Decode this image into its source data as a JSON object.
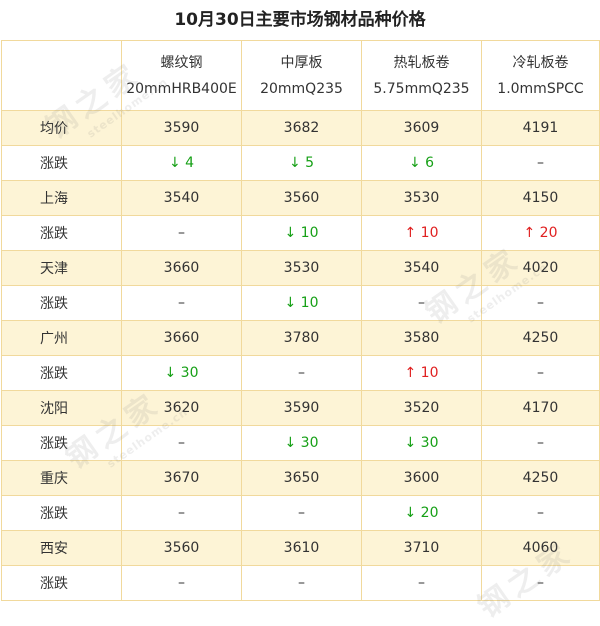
{
  "title": "10月30日主要市场钢材品种价格",
  "headers": [
    {
      "name": "螺纹钢",
      "spec": "20mmHRB400E"
    },
    {
      "name": "中厚板",
      "spec": "20mmQ235"
    },
    {
      "name": "热轧板卷",
      "spec": "5.75mmQ235"
    },
    {
      "name": "冷轧板卷",
      "spec": "1.0mmSPCC"
    }
  ],
  "rows": [
    {
      "label": "均价",
      "cells": [
        "3590",
        "3682",
        "3609",
        "4191"
      ]
    },
    {
      "label": "涨跌",
      "cells": [
        "↓ 4",
        "↓ 5",
        "↓ 6",
        "–"
      ],
      "dirs": [
        "down",
        "down",
        "down",
        "flat"
      ]
    },
    {
      "label": "上海",
      "cells": [
        "3540",
        "3560",
        "3530",
        "4150"
      ]
    },
    {
      "label": "涨跌",
      "cells": [
        "–",
        "↓ 10",
        "↑ 10",
        "↑ 20"
      ],
      "dirs": [
        "flat",
        "down",
        "up",
        "up"
      ]
    },
    {
      "label": "天津",
      "cells": [
        "3660",
        "3530",
        "3540",
        "4020"
      ]
    },
    {
      "label": "涨跌",
      "cells": [
        "–",
        "↓ 10",
        "–",
        "–"
      ],
      "dirs": [
        "flat",
        "down",
        "flat",
        "flat"
      ]
    },
    {
      "label": "广州",
      "cells": [
        "3660",
        "3780",
        "3580",
        "4250"
      ]
    },
    {
      "label": "涨跌",
      "cells": [
        "↓ 30",
        "–",
        "↑ 10",
        "–"
      ],
      "dirs": [
        "down",
        "flat",
        "up",
        "flat"
      ]
    },
    {
      "label": "沈阳",
      "cells": [
        "3620",
        "3590",
        "3520",
        "4170"
      ]
    },
    {
      "label": "涨跌",
      "cells": [
        "–",
        "↓ 30",
        "↓ 30",
        "–"
      ],
      "dirs": [
        "flat",
        "down",
        "down",
        "flat"
      ]
    },
    {
      "label": "重庆",
      "cells": [
        "3670",
        "3650",
        "3600",
        "4250"
      ]
    },
    {
      "label": "涨跌",
      "cells": [
        "–",
        "–",
        "↓ 20",
        "–"
      ],
      "dirs": [
        "flat",
        "flat",
        "down",
        "flat"
      ]
    },
    {
      "label": "西安",
      "cells": [
        "3560",
        "3610",
        "3710",
        "4060"
      ]
    },
    {
      "label": "涨跌",
      "cells": [
        "–",
        "–",
        "–",
        "–"
      ],
      "dirs": [
        "flat",
        "flat",
        "flat",
        "flat"
      ]
    }
  ],
  "watermark": {
    "text": "钢之家",
    "sub": "steelhome.cn"
  },
  "colors": {
    "border": "#f1d99c",
    "shade": "#fdf4d6",
    "up": "#e02020",
    "down": "#16a016"
  }
}
